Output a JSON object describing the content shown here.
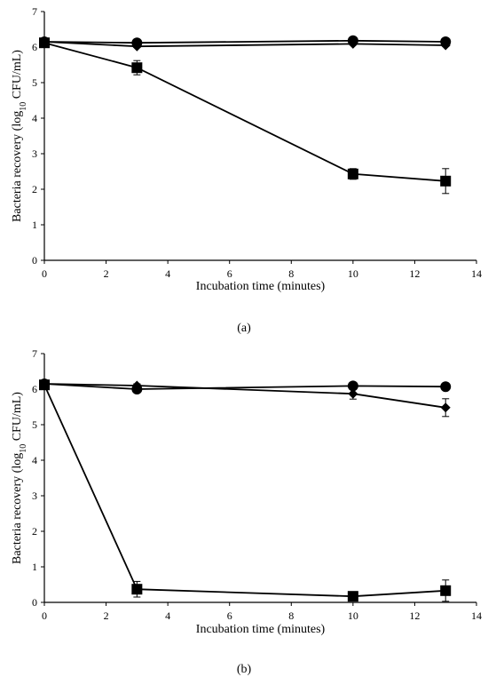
{
  "chart_data": [
    {
      "type": "line",
      "panel_label": "(a)",
      "xlabel": "Incubation time (minutes)",
      "ylabel_main": "Bacteria recovery (log",
      "ylabel_sub": "10",
      "ylabel_tail": " CFU/mL)",
      "xlim": [
        0,
        14
      ],
      "ylim": [
        0,
        7
      ],
      "xticks": [
        "0",
        "2",
        "4",
        "6",
        "8",
        "10",
        "12",
        "14"
      ],
      "yticks": [
        "0",
        "1",
        "2",
        "3",
        "4",
        "5",
        "6",
        "7"
      ],
      "grid": false,
      "x": [
        0,
        3,
        10,
        13
      ],
      "series": [
        {
          "marker": "circle",
          "values": [
            6.15,
            6.12,
            6.18,
            6.15
          ],
          "errors": [
            0,
            0.03,
            0.03,
            0.03
          ]
        },
        {
          "marker": "diamond",
          "values": [
            6.15,
            6.02,
            6.09,
            6.05
          ],
          "errors": [
            0,
            0.03,
            0.03,
            0.03
          ]
        },
        {
          "marker": "square",
          "values": [
            6.12,
            5.42,
            2.43,
            2.23
          ],
          "errors": [
            0.05,
            0.2,
            0.15,
            0.35
          ]
        }
      ]
    },
    {
      "type": "line",
      "panel_label": "(b)",
      "xlabel": "Incubation time (minutes)",
      "ylabel_main": "Bacteria recovery (log",
      "ylabel_sub": "10",
      "ylabel_tail": " CFU/mL)",
      "xlim": [
        0,
        14
      ],
      "ylim": [
        0,
        7
      ],
      "xticks": [
        "0",
        "2",
        "4",
        "6",
        "8",
        "10",
        "12",
        "14"
      ],
      "yticks": [
        "0",
        "1",
        "2",
        "3",
        "4",
        "5",
        "6",
        "7"
      ],
      "grid": false,
      "x": [
        0,
        3,
        10,
        13
      ],
      "series": [
        {
          "marker": "circle",
          "values": [
            6.15,
            6.0,
            6.09,
            6.07
          ],
          "errors": [
            0,
            0.05,
            0.05,
            0.05
          ]
        },
        {
          "marker": "diamond",
          "values": [
            6.15,
            6.1,
            5.87,
            5.48
          ],
          "errors": [
            0,
            0.05,
            0.15,
            0.25
          ]
        },
        {
          "marker": "square",
          "values": [
            6.12,
            0.37,
            0.17,
            0.33
          ],
          "errors": [
            0.05,
            0.22,
            0.1,
            0.3
          ]
        }
      ]
    }
  ]
}
